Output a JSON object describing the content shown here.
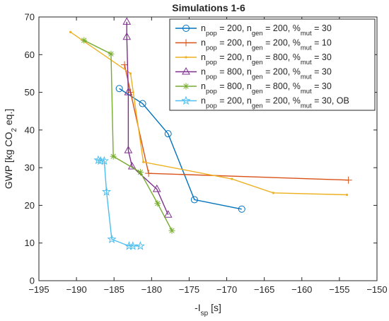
{
  "chart_data": {
    "type": "line",
    "title": "Simulations 1-6",
    "xlabel": {
      "main": "-I",
      "sub": "sp",
      "tail": " [s]"
    },
    "ylabel": {
      "main": "GWP [kg CO",
      "sub": "2",
      "tail": " eq.]"
    },
    "xlim": [
      -195,
      -150
    ],
    "ylim": [
      0,
      70
    ],
    "xticks": [
      -195,
      -190,
      -185,
      -180,
      -175,
      -170,
      -165,
      -160,
      -155,
      -150
    ],
    "yticks": [
      0,
      10,
      20,
      30,
      40,
      50,
      60,
      70
    ],
    "grid": false,
    "legend_position": "top-right",
    "series": [
      {
        "legend": [
          [
            "n",
            ""
          ],
          [
            "pop",
            "sub"
          ],
          [
            " = 200, n",
            ""
          ],
          [
            "gen",
            "sub"
          ],
          [
            " = 200, %",
            ""
          ],
          [
            "mut",
            "sub"
          ],
          [
            " = 30",
            ""
          ]
        ],
        "color": "#0072BD",
        "marker": "circle",
        "points": [
          [
            -184.3,
            51
          ],
          [
            -181.2,
            47
          ],
          [
            -177.8,
            39
          ],
          [
            -174.3,
            21.5
          ],
          [
            -168,
            19
          ]
        ]
      },
      {
        "legend": [
          [
            "n",
            ""
          ],
          [
            "pop",
            "sub"
          ],
          [
            " = 200, n",
            ""
          ],
          [
            "gen",
            "sub"
          ],
          [
            " = 200, %",
            ""
          ],
          [
            "mut",
            "sub"
          ],
          [
            " = 10",
            ""
          ]
        ],
        "color": "#D95319",
        "marker": "plus",
        "points": [
          [
            -183.6,
            57.3
          ],
          [
            -182.8,
            50
          ],
          [
            -180.4,
            28.5
          ],
          [
            -153.8,
            26.7
          ]
        ]
      },
      {
        "legend": [
          [
            "n",
            ""
          ],
          [
            "pop",
            "sub"
          ],
          [
            " = 200, n",
            ""
          ],
          [
            "gen",
            "sub"
          ],
          [
            " = 800, %",
            ""
          ],
          [
            "mut",
            "sub"
          ],
          [
            " = 30",
            ""
          ]
        ],
        "color": "#EDB120",
        "marker": "dot",
        "points": [
          [
            -190.8,
            66
          ],
          [
            -182.8,
            55
          ],
          [
            -181.1,
            31.5
          ],
          [
            -169.3,
            27
          ],
          [
            -163.8,
            23.3
          ],
          [
            -154,
            22.8
          ]
        ]
      },
      {
        "legend": [
          [
            "n",
            ""
          ],
          [
            "pop",
            "sub"
          ],
          [
            " = 800, n",
            ""
          ],
          [
            "gen",
            "sub"
          ],
          [
            " = 200, %",
            ""
          ],
          [
            "mut",
            "sub"
          ],
          [
            " = 30",
            ""
          ]
        ],
        "color": "#7E2F8E",
        "marker": "triangle",
        "points": [
          [
            -183.3,
            68.7
          ],
          [
            -183.3,
            64.7
          ],
          [
            -183.1,
            50
          ],
          [
            -183.1,
            34.6
          ],
          [
            -182.6,
            30.3
          ],
          [
            -179.3,
            24.3
          ],
          [
            -177.8,
            17.5
          ]
        ]
      },
      {
        "legend": [
          [
            "n",
            ""
          ],
          [
            "pop",
            "sub"
          ],
          [
            " = 800, n",
            ""
          ],
          [
            "gen",
            "sub"
          ],
          [
            " = 800, %",
            ""
          ],
          [
            "mut",
            "sub"
          ],
          [
            " = 30",
            ""
          ]
        ],
        "color": "#77AC30",
        "marker": "asterisk",
        "points": [
          [
            -189,
            63.8
          ],
          [
            -185.4,
            60.2
          ],
          [
            -185.1,
            33
          ],
          [
            -181.5,
            28.8
          ],
          [
            -179.2,
            20.5
          ],
          [
            -177.3,
            13.3
          ]
        ]
      },
      {
        "legend": [
          [
            "n",
            ""
          ],
          [
            "pop",
            "sub"
          ],
          [
            " = 200, n",
            ""
          ],
          [
            "gen",
            "sub"
          ],
          [
            " = 200, %",
            ""
          ],
          [
            "mut",
            "sub"
          ],
          [
            " = 30, OB",
            ""
          ]
        ],
        "color": "#4DBEEE",
        "marker": "star",
        "points": [
          [
            -187.1,
            32
          ],
          [
            -186.8,
            31.8
          ],
          [
            -186.3,
            31.8
          ],
          [
            -186,
            23.6
          ],
          [
            -185.3,
            11
          ],
          [
            -183,
            9.2
          ],
          [
            -182.5,
            9.2
          ],
          [
            -181.5,
            9.2
          ]
        ]
      }
    ]
  }
}
